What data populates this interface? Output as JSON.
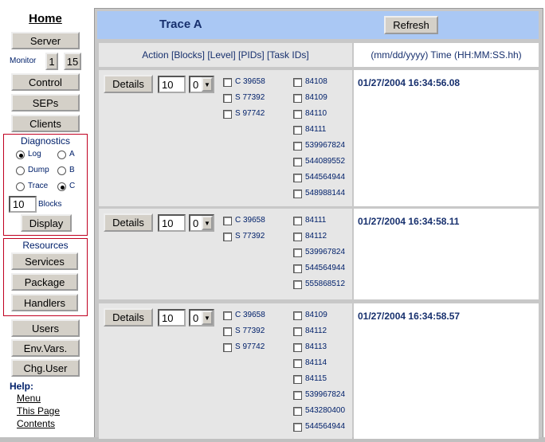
{
  "sidebar": {
    "home": "Home",
    "server": "Server",
    "monitor_label": "Monitor",
    "monitor_buttons": [
      "1",
      "15"
    ],
    "control": "Control",
    "seps": "SEPs",
    "clients": "Clients",
    "diagnostics": {
      "title": "Diagnostics",
      "options": [
        {
          "label": "Log",
          "checked": true
        },
        {
          "label": "A",
          "checked": false
        },
        {
          "label": "Dump",
          "checked": false
        },
        {
          "label": "B",
          "checked": false
        },
        {
          "label": "Trace",
          "checked": false
        },
        {
          "label": "C",
          "checked": true
        }
      ],
      "blocks_value": "10",
      "blocks_label": "Blocks",
      "display": "Display"
    },
    "resources": {
      "title": "Resources",
      "services": "Services",
      "package": "Package",
      "handlers": "Handlers"
    },
    "users": "Users",
    "env_vars": "Env.Vars.",
    "chg_user": "Chg.User",
    "help": {
      "title": "Help:",
      "links": [
        "Menu",
        "This Page",
        "Contents"
      ]
    }
  },
  "main": {
    "title": "Trace A",
    "refresh": "Refresh",
    "columns": {
      "action": "Action [Blocks] [Level] [PIDs] [Task IDs]",
      "time": "(mm/dd/yyyy) Time (HH:MM:SS.hh)"
    },
    "entries": [
      {
        "details": "Details",
        "blocks": "10",
        "level": "0",
        "tasks": [
          "C 39658",
          "S 77392",
          "S 97742"
        ],
        "pids": [
          "84108",
          "84109",
          "84110",
          "84111",
          "539967824",
          "544089552",
          "544564944",
          "548988144"
        ],
        "time": "01/27/2004 16:34:56.08"
      },
      {
        "details": "Details",
        "blocks": "10",
        "level": "0",
        "tasks": [
          "C 39658",
          "S 77392"
        ],
        "pids": [
          "84111",
          "84112",
          "539967824",
          "544564944",
          "555868512"
        ],
        "time": "01/27/2004 16:34:58.11"
      },
      {
        "details": "Details",
        "blocks": "10",
        "level": "0",
        "tasks": [
          "C 39658",
          "S 77392",
          "S 97742"
        ],
        "pids": [
          "84109",
          "84112",
          "84113",
          "84114",
          "84115",
          "539967824",
          "543280400",
          "544564944"
        ],
        "time": "01/27/2004 16:34:58.57"
      }
    ]
  }
}
